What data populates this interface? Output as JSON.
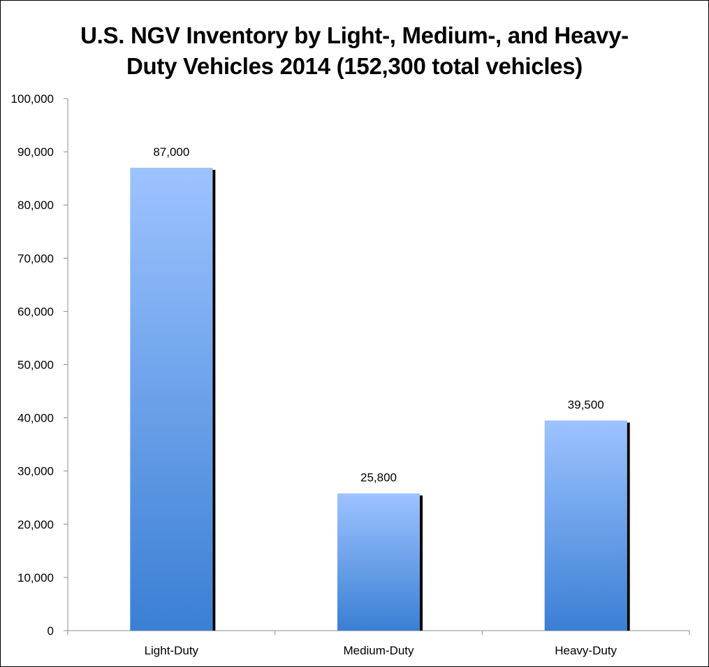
{
  "chart_data": {
    "type": "bar",
    "title_lines": [
      "U.S. NGV Inventory by Light-, Medium-, and Heavy-",
      "Duty Vehicles 2014 (152,300 total vehicles)"
    ],
    "categories": [
      "Light-Duty",
      "Medium-Duty",
      "Heavy-Duty"
    ],
    "values": [
      87000,
      25800,
      39500
    ],
    "data_labels": [
      "87,000",
      "25,800",
      "39,500"
    ],
    "xlabel": "",
    "ylabel": "",
    "ylim": [
      0,
      100000
    ],
    "yticks": [
      0,
      10000,
      20000,
      30000,
      40000,
      50000,
      60000,
      70000,
      80000,
      90000,
      100000
    ],
    "ytick_labels": [
      "0",
      "10,000",
      "20,000",
      "30,000",
      "40,000",
      "50,000",
      "60,000",
      "70,000",
      "80,000",
      "90,000",
      "100,000"
    ],
    "grid": false,
    "legend": "none",
    "colors": {
      "bar_top": "#9dc3ff",
      "bar_bottom": "#3a7fd4",
      "bar_shadow": "#000000",
      "axis": "#8c8c8c"
    }
  }
}
